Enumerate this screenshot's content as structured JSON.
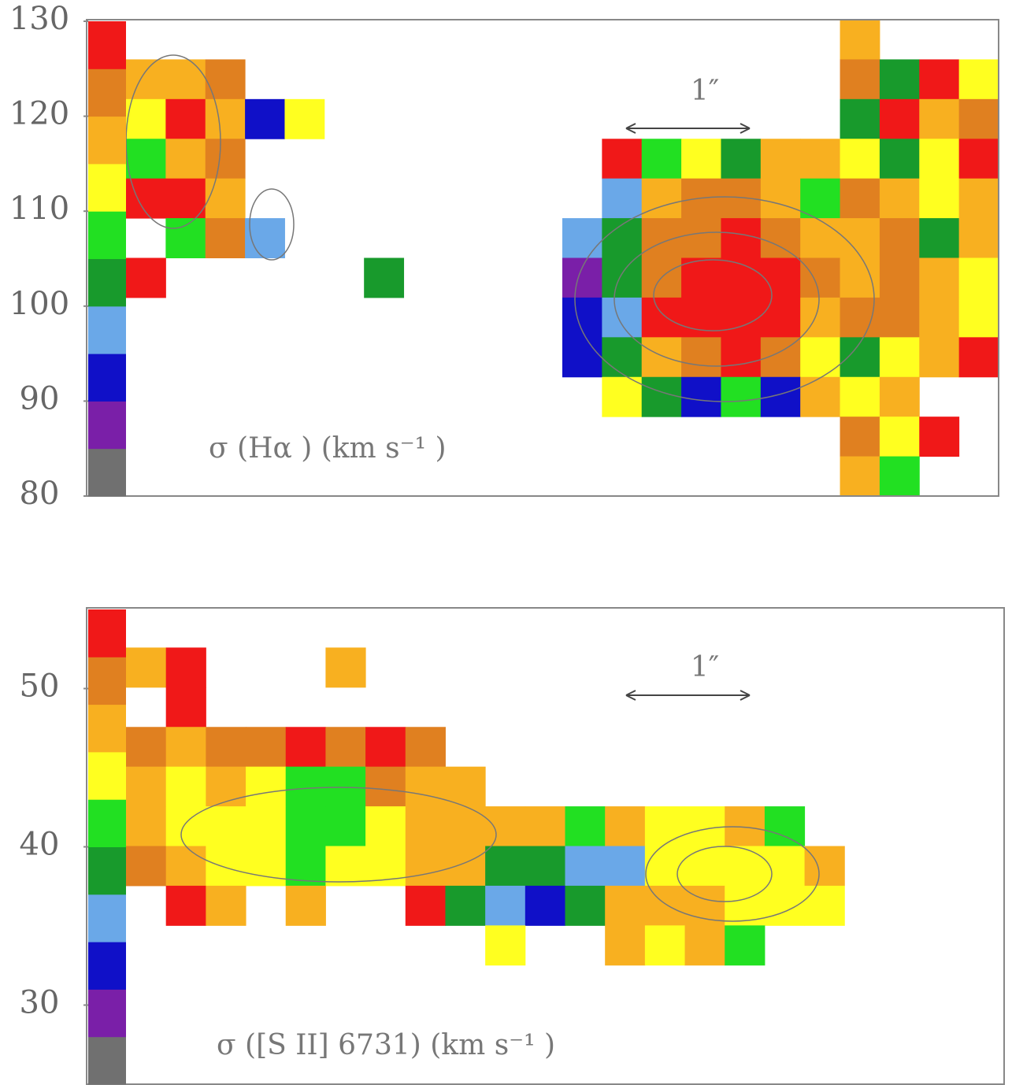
{
  "chart_data": [
    {
      "type": "heatmap",
      "label": "σ (Hα ) (km s⁻¹ )",
      "scale_bar_label": "1″",
      "ylim": [
        80,
        130
      ],
      "yticks": [
        80,
        90,
        100,
        110,
        120,
        130
      ],
      "colors": [
        "#707070",
        "#7a1fa8",
        "#1010c8",
        "#6aa8e8",
        "#189a2c",
        "#22e022",
        "#ffff20",
        "#f8b020",
        "#e08020",
        "#f01818"
      ],
      "grid": [
        [
          null,
          null,
          null,
          null,
          null,
          null,
          null,
          null,
          null,
          null,
          null,
          null,
          null,
          null,
          null,
          null,
          null,
          null,
          118,
          null,
          null,
          null
        ],
        [
          118,
          117,
          120,
          null,
          null,
          null,
          null,
          null,
          null,
          null,
          null,
          null,
          null,
          null,
          null,
          null,
          null,
          null,
          122,
          103,
          127,
          112
        ],
        [
          112,
          127,
          118,
          91,
          112,
          null,
          null,
          null,
          null,
          null,
          null,
          null,
          null,
          null,
          null,
          null,
          null,
          null,
          102,
          127,
          118,
          123
        ],
        [
          105,
          117,
          124,
          null,
          null,
          null,
          null,
          null,
          null,
          null,
          null,
          null,
          127,
          108,
          113,
          103,
          117,
          118,
          113,
          103,
          113,
          127
        ],
        [
          125,
          127,
          119,
          null,
          null,
          null,
          null,
          null,
          null,
          null,
          null,
          null,
          97,
          118,
          122,
          124,
          117,
          107,
          122,
          118,
          113,
          118
        ],
        [
          null,
          108,
          121,
          97,
          null,
          null,
          null,
          null,
          null,
          null,
          null,
          97,
          103,
          122,
          124,
          126,
          124,
          118,
          117,
          123,
          103,
          118
        ],
        [
          127,
          null,
          null,
          null,
          null,
          null,
          102,
          null,
          null,
          null,
          null,
          88,
          103,
          123,
          128,
          128,
          126,
          122,
          118,
          124,
          117,
          112
        ],
        [
          null,
          null,
          null,
          null,
          null,
          null,
          null,
          null,
          null,
          null,
          null,
          92,
          97,
          128,
          128,
          128,
          127,
          118,
          122,
          122,
          118,
          113
        ],
        [
          null,
          null,
          null,
          null,
          null,
          null,
          null,
          null,
          null,
          null,
          null,
          93,
          103,
          118,
          124,
          128,
          123,
          113,
          103,
          112,
          117,
          127
        ],
        [
          null,
          null,
          null,
          null,
          null,
          null,
          null,
          null,
          null,
          null,
          null,
          null,
          112,
          102,
          92,
          108,
          93,
          117,
          113,
          118,
          null,
          null
        ],
        [
          null,
          null,
          null,
          null,
          null,
          null,
          null,
          null,
          null,
          null,
          null,
          null,
          null,
          null,
          null,
          null,
          null,
          null,
          122,
          113,
          127,
          null
        ],
        [
          null,
          null,
          null,
          null,
          null,
          null,
          null,
          null,
          null,
          null,
          null,
          null,
          null,
          null,
          null,
          null,
          null,
          null,
          118,
          107,
          null,
          null
        ]
      ]
    },
    {
      "type": "heatmap",
      "label": "σ ([S II] 6731) (km s⁻¹ )",
      "scale_bar_label": "1″",
      "ylim": [
        25,
        55
      ],
      "yticks": [
        30,
        40,
        50
      ],
      "colors": [
        "#707070",
        "#7a1fa8",
        "#1010c8",
        "#6aa8e8",
        "#189a2c",
        "#22e022",
        "#ffff20",
        "#f8b020",
        "#e08020",
        "#f01818"
      ],
      "grid": [
        [
          null,
          null,
          null,
          null,
          null,
          null,
          null,
          null,
          null,
          null,
          null,
          null,
          null,
          null,
          null,
          null,
          null,
          null,
          null,
          null,
          null,
          null
        ],
        [
          48,
          53,
          null,
          null,
          null,
          47,
          null,
          null,
          null,
          null,
          null,
          null,
          null,
          null,
          null,
          null,
          null,
          null,
          null,
          null,
          null,
          null
        ],
        [
          null,
          54,
          null,
          null,
          null,
          null,
          null,
          null,
          null,
          null,
          null,
          null,
          null,
          null,
          null,
          null,
          null,
          null,
          null,
          null,
          null,
          null
        ],
        [
          50,
          48,
          51,
          49,
          52,
          49,
          53,
          50,
          null,
          null,
          null,
          null,
          null,
          null,
          null,
          null,
          null,
          null,
          null,
          null,
          null,
          null
        ],
        [
          47,
          44,
          46,
          44,
          42,
          40,
          49,
          47,
          46,
          null,
          null,
          null,
          null,
          null,
          null,
          null,
          null,
          null,
          null,
          null,
          null,
          null
        ],
        [
          47,
          44,
          43,
          44,
          40,
          41,
          45,
          46,
          47,
          46,
          47,
          40,
          46,
          44,
          45,
          47,
          41,
          null,
          null,
          null,
          null,
          null
        ],
        [
          49,
          46,
          44,
          44,
          41,
          44,
          45,
          47,
          46,
          39,
          37,
          34,
          36,
          44,
          44,
          45,
          44,
          46,
          null,
          null,
          null,
          null
        ],
        [
          null,
          52,
          47,
          null,
          47,
          null,
          null,
          52,
          39,
          36,
          33,
          38,
          46,
          46,
          47,
          44,
          44,
          44,
          null,
          null,
          null,
          null
        ],
        [
          null,
          null,
          null,
          null,
          null,
          null,
          null,
          null,
          null,
          44,
          null,
          null,
          46,
          44,
          46,
          40,
          null,
          null,
          null,
          null,
          null,
          null
        ],
        [
          null,
          null,
          null,
          null,
          null,
          null,
          null,
          null,
          null,
          null,
          null,
          null,
          null,
          null,
          null,
          null,
          null,
          null,
          null,
          null,
          null,
          null
        ],
        [
          null,
          null,
          null,
          null,
          null,
          null,
          null,
          null,
          null,
          null,
          null,
          null,
          null,
          null,
          null,
          null,
          null,
          null,
          null,
          null,
          null,
          null
        ],
        [
          null,
          null,
          null,
          null,
          null,
          null,
          null,
          null,
          null,
          null,
          null,
          null,
          null,
          null,
          null,
          null,
          null,
          null,
          null,
          null,
          null,
          null
        ]
      ]
    }
  ]
}
